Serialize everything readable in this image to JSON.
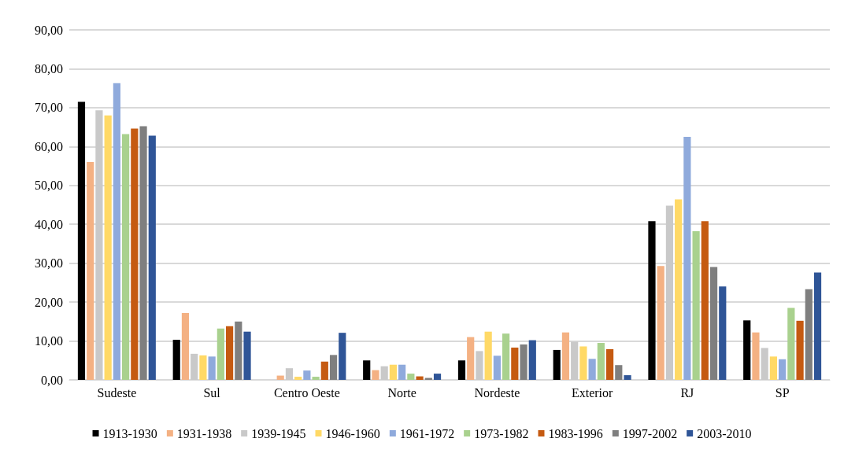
{
  "chart_data": {
    "type": "bar",
    "categories": [
      "Sudeste",
      "Sul",
      "Centro Oeste",
      "Norte",
      "Nordeste",
      "Exterior",
      "RJ",
      "SP"
    ],
    "series": [
      {
        "name": "1913-1930",
        "color": "#000000",
        "values": [
          71.5,
          10.3,
          0,
          5.0,
          5.0,
          7.7,
          40.8,
          15.3
        ]
      },
      {
        "name": "1931-1938",
        "color": "#f4b183",
        "values": [
          56.0,
          17.2,
          1.1,
          2.5,
          11.0,
          12.2,
          29.3,
          12.2
        ]
      },
      {
        "name": "1939-1945",
        "color": "#c9c9c9",
        "values": [
          69.3,
          6.7,
          3.0,
          3.5,
          7.4,
          9.8,
          44.8,
          8.2
        ]
      },
      {
        "name": "1946-1960",
        "color": "#ffd966",
        "values": [
          68.0,
          6.3,
          0.8,
          3.9,
          12.4,
          8.6,
          46.4,
          6.0
        ]
      },
      {
        "name": "1961-1972",
        "color": "#8faadc",
        "values": [
          76.3,
          6.0,
          2.4,
          3.9,
          6.2,
          5.4,
          62.5,
          5.3
        ]
      },
      {
        "name": "1973-1982",
        "color": "#a9d18e",
        "values": [
          63.2,
          13.2,
          0.8,
          1.6,
          11.9,
          9.5,
          38.2,
          18.5
        ]
      },
      {
        "name": "1983-1996",
        "color": "#c55a11",
        "values": [
          64.6,
          13.8,
          4.7,
          0.9,
          8.3,
          7.9,
          40.8,
          15.2
        ]
      },
      {
        "name": "1997-2002",
        "color": "#7f7f7f",
        "values": [
          65.2,
          15.0,
          6.4,
          0.5,
          9.1,
          3.8,
          29.0,
          23.3
        ]
      },
      {
        "name": "2003-2010",
        "color": "#2f5597",
        "values": [
          62.8,
          12.4,
          12.1,
          1.6,
          10.2,
          1.2,
          24.0,
          27.6
        ]
      }
    ],
    "ylim": [
      0,
      90
    ],
    "yticks": [
      {
        "value": 0,
        "label": "0,00"
      },
      {
        "value": 10,
        "label": "10,00"
      },
      {
        "value": 20,
        "label": "20,00"
      },
      {
        "value": 30,
        "label": "30,00"
      },
      {
        "value": 40,
        "label": "40,00"
      },
      {
        "value": 50,
        "label": "50,00"
      },
      {
        "value": 60,
        "label": "60,00"
      },
      {
        "value": 70,
        "label": "70,00"
      },
      {
        "value": 80,
        "label": "80,00"
      },
      {
        "value": 90,
        "label": "90,00"
      }
    ],
    "grid": "y",
    "legend": "bottom"
  }
}
